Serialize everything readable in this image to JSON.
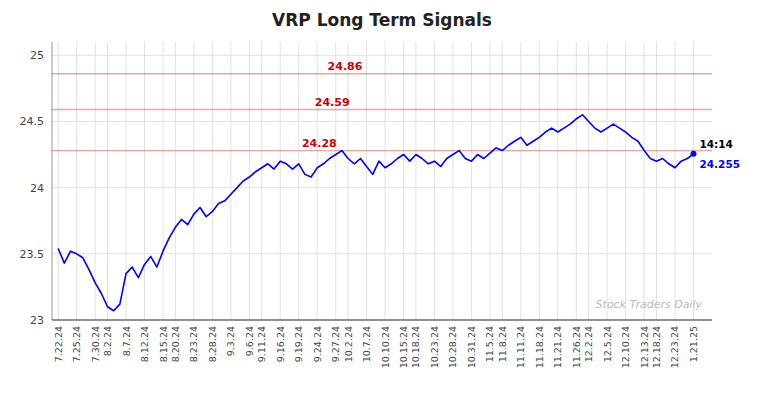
{
  "chart_data": {
    "type": "line",
    "title": "VRP Long Term Signals",
    "color": "blue",
    "grid": true,
    "ylim": [
      23.0,
      25.1
    ],
    "yticks": [
      23,
      23.5,
      24,
      24.5,
      25
    ],
    "categories": [
      "7.22.24",
      null,
      null,
      "7.25.24",
      null,
      null,
      "7.30.24",
      null,
      "8.2.24",
      null,
      null,
      "8.7.24",
      null,
      null,
      "8.12.24",
      null,
      null,
      "8.15.24",
      null,
      "8.20.24",
      null,
      null,
      "8.23.24",
      null,
      null,
      "8.28.24",
      null,
      null,
      "9.3.24",
      null,
      null,
      "9.6.24",
      null,
      "9.11.24",
      null,
      null,
      "9.16.24",
      null,
      null,
      "9.19.24",
      null,
      null,
      "9.24.24",
      null,
      null,
      "9.27.24",
      null,
      "10.2.24",
      null,
      null,
      "10.7.24",
      null,
      null,
      "10.10.24",
      null,
      null,
      "10.15.24",
      null,
      "10.18.24",
      null,
      null,
      "10.23.24",
      null,
      null,
      "10.28.24",
      null,
      null,
      "10.31.24",
      null,
      null,
      "11.5.24",
      null,
      "11.8.24",
      null,
      null,
      "11.11.24",
      null,
      null,
      "11.18.24",
      null,
      null,
      "11.21.24",
      null,
      null,
      "11.26.24",
      null,
      "12.2.24",
      null,
      null,
      "12.5.24",
      null,
      null,
      "12.10.24",
      null,
      null,
      "12.13.24",
      null,
      "12.18.24",
      null,
      null,
      "12.23.24",
      null,
      null,
      "1.21.25"
    ],
    "values": [
      23.54,
      23.43,
      23.52,
      23.5,
      23.47,
      23.38,
      23.28,
      23.2,
      23.1,
      23.07,
      23.12,
      23.35,
      23.4,
      23.32,
      23.42,
      23.48,
      23.4,
      23.52,
      23.62,
      23.7,
      23.76,
      23.72,
      23.8,
      23.85,
      23.78,
      23.82,
      23.88,
      23.9,
      23.95,
      24.0,
      24.05,
      24.08,
      24.12,
      24.15,
      24.18,
      24.14,
      24.2,
      24.18,
      24.14,
      24.18,
      24.1,
      24.08,
      24.15,
      24.18,
      24.22,
      24.25,
      24.28,
      24.22,
      24.18,
      24.22,
      24.16,
      24.1,
      24.2,
      24.15,
      24.18,
      24.22,
      24.25,
      24.2,
      24.25,
      24.22,
      24.18,
      24.2,
      24.16,
      24.22,
      24.25,
      24.28,
      24.22,
      24.2,
      24.25,
      24.22,
      24.26,
      24.3,
      24.28,
      24.32,
      24.35,
      24.38,
      24.32,
      24.35,
      24.38,
      24.42,
      24.45,
      24.42,
      24.45,
      24.48,
      24.52,
      24.55,
      24.5,
      24.45,
      24.42,
      24.45,
      24.48,
      24.45,
      24.42,
      24.38,
      24.35,
      24.28,
      24.22,
      24.2,
      24.22,
      24.18,
      24.15,
      24.2,
      24.22,
      24.255
    ],
    "reference_lines": [
      {
        "value": 24.86,
        "label": "24.86",
        "color": "#cc0000"
      },
      {
        "value": 24.59,
        "label": "24.59",
        "color": "#cc0000"
      },
      {
        "value": 24.28,
        "label": "24.28",
        "color": "#cc0000"
      }
    ],
    "annotations": [
      "14:14",
      "Stock Traders Daily"
    ],
    "last_value_label": "24.255"
  }
}
